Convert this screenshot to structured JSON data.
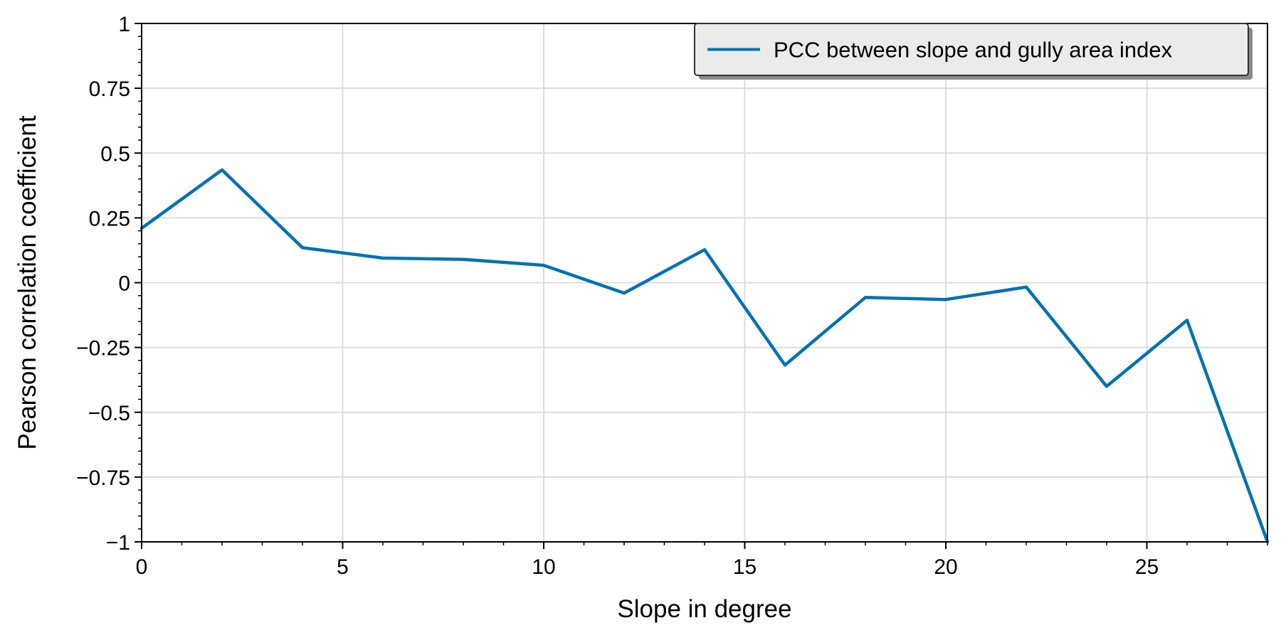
{
  "chart_data": {
    "type": "line",
    "xlabel": "Slope in degree",
    "ylabel": "Pearson correlation coefficient",
    "xlim": [
      0,
      28
    ],
    "ylim": [
      -1,
      1
    ],
    "x_ticks": [
      0,
      5,
      10,
      15,
      20,
      25
    ],
    "x_tick_labels": [
      "0",
      "5",
      "10",
      "15",
      "20",
      "25"
    ],
    "y_ticks": [
      -1,
      -0.75,
      -0.5,
      -0.25,
      0,
      0.25,
      0.5,
      0.75,
      1
    ],
    "y_tick_labels": [
      "−1",
      "−0.75",
      "−0.5",
      "−0.25",
      "0",
      "0.25",
      "0.5",
      "0.75",
      "1"
    ],
    "grid": true,
    "legend_position": "top-right",
    "series": [
      {
        "name": "PCC between slope and gully area index",
        "color": "#0072b2",
        "x": [
          0,
          2,
          4,
          6,
          8,
          10,
          12,
          14,
          16,
          18,
          20,
          22,
          24,
          26,
          28
        ],
        "y": [
          0.21,
          0.435,
          0.135,
          0.095,
          0.09,
          0.067,
          -0.04,
          0.127,
          -0.318,
          -0.057,
          -0.065,
          -0.017,
          -0.4,
          -0.145,
          -1.0
        ]
      }
    ]
  }
}
